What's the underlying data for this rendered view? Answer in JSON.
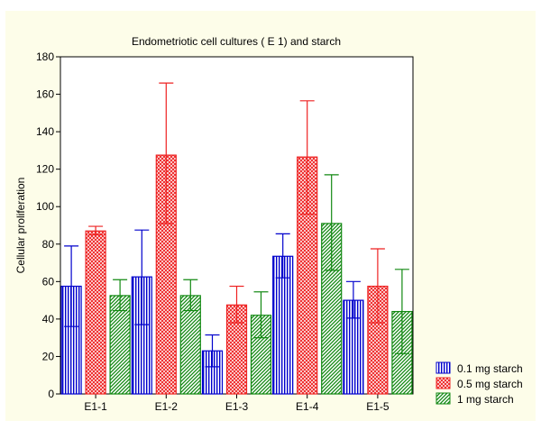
{
  "chart_data": {
    "type": "bar",
    "title": "Endometriotic cell cultures ( E 1) and starch",
    "xlabel": "",
    "ylabel": "Cellular proliferation",
    "ylim": [
      0,
      180
    ],
    "yticks": [
      0,
      20,
      40,
      60,
      80,
      100,
      120,
      140,
      160,
      180
    ],
    "grid": false,
    "legend_position": "bottom-right",
    "categories": [
      "E1-1",
      "E1-2",
      "E1-3",
      "E1-4",
      "E1-5"
    ],
    "series": [
      {
        "name": "0.1 mg starch",
        "color": "#0000cc",
        "pattern": "vertical lines",
        "values": [
          57.5,
          62.5,
          23,
          73.5,
          50
        ],
        "error_low": [
          36,
          37,
          14.5,
          62,
          40.5
        ],
        "error_high": [
          79,
          87.5,
          31.5,
          85.5,
          60
        ]
      },
      {
        "name": "0.5 mg starch",
        "color": "#ee2222",
        "pattern": "cross-hatch",
        "values": [
          87,
          127.5,
          47.5,
          126.5,
          57.5
        ],
        "error_low": [
          85,
          91,
          38,
          96,
          38
        ],
        "error_high": [
          89.5,
          166,
          57.5,
          156.5,
          77.5
        ]
      },
      {
        "name": "1 mg starch",
        "color": "#118811",
        "pattern": "diagonal lines",
        "values": [
          52.5,
          52.5,
          42,
          91,
          44
        ],
        "error_low": [
          44.5,
          44.5,
          30,
          66,
          21.5
        ],
        "error_high": [
          61,
          61,
          54.5,
          117,
          66.5
        ]
      }
    ]
  }
}
